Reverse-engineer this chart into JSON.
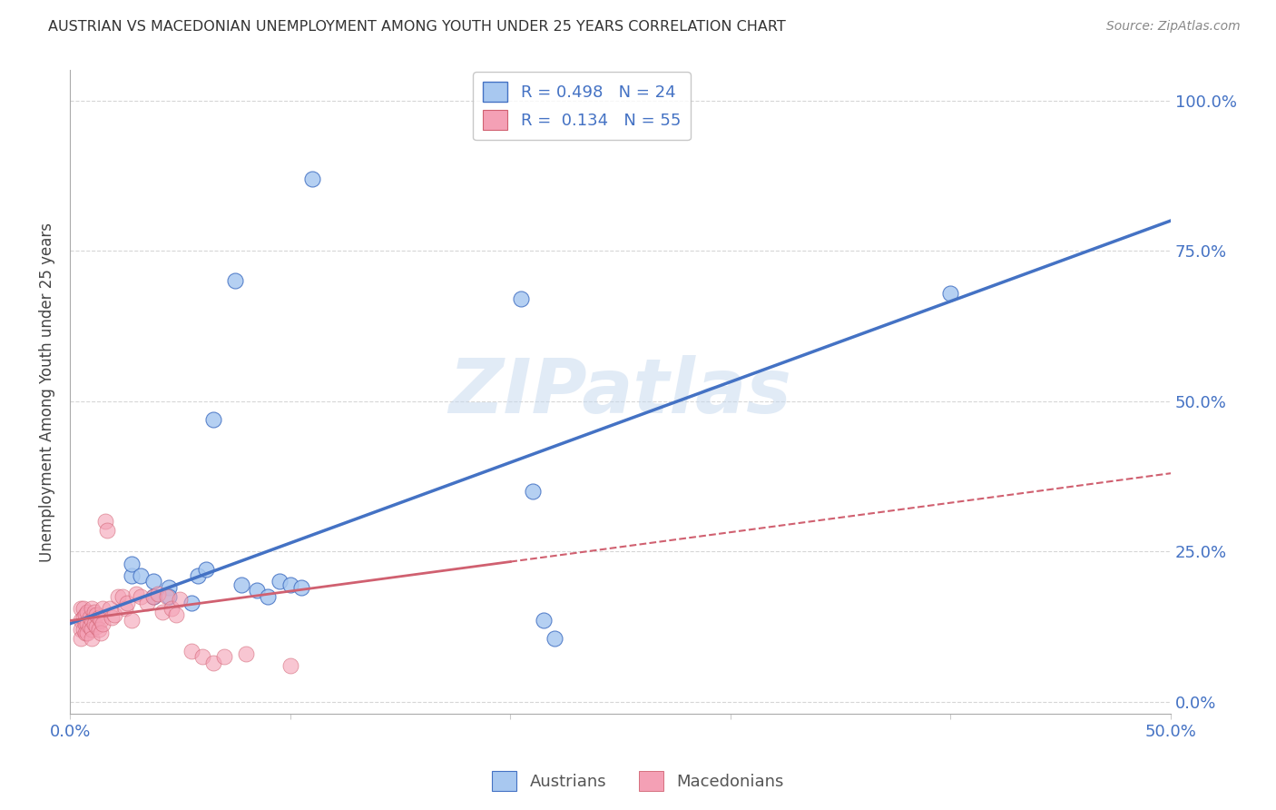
{
  "title": "AUSTRIAN VS MACEDONIAN UNEMPLOYMENT AMONG YOUTH UNDER 25 YEARS CORRELATION CHART",
  "source": "Source: ZipAtlas.com",
  "ylabel": "Unemployment Among Youth under 25 years",
  "xlabel_austrians": "Austrians",
  "xlabel_macedonians": "Macedonians",
  "xlim": [
    0.0,
    0.5
  ],
  "ylim": [
    -0.02,
    1.05
  ],
  "ytick_labels_right": [
    "0.0%",
    "25.0%",
    "50.0%",
    "75.0%",
    "100.0%"
  ],
  "ytick_positions_right": [
    0.0,
    0.25,
    0.5,
    0.75,
    1.0
  ],
  "austrian_R": 0.498,
  "austrian_N": 24,
  "macedonian_R": 0.134,
  "macedonian_N": 55,
  "color_austrian": "#A8C8F0",
  "color_macedonian": "#F4A0B5",
  "color_line_austrian": "#4472C4",
  "color_line_macedonian": "#D06070",
  "watermark": "ZIPatlas",
  "austrian_line_x": [
    0.0,
    0.5
  ],
  "austrian_line_y": [
    0.13,
    0.8
  ],
  "macedonian_line_x": [
    0.0,
    0.5
  ],
  "macedonian_line_y": [
    0.135,
    0.38
  ],
  "austrian_points_x": [
    0.028,
    0.028,
    0.032,
    0.038,
    0.038,
    0.045,
    0.045,
    0.055,
    0.058,
    0.062,
    0.065,
    0.075,
    0.078,
    0.085,
    0.09,
    0.095,
    0.1,
    0.105,
    0.11,
    0.205,
    0.21,
    0.215,
    0.22,
    0.4
  ],
  "austrian_points_y": [
    0.21,
    0.23,
    0.21,
    0.2,
    0.175,
    0.19,
    0.175,
    0.165,
    0.21,
    0.22,
    0.47,
    0.7,
    0.195,
    0.185,
    0.175,
    0.2,
    0.195,
    0.19,
    0.87,
    0.67,
    0.35,
    0.135,
    0.105,
    0.68
  ],
  "macedonian_points_x": [
    0.005,
    0.005,
    0.005,
    0.005,
    0.006,
    0.006,
    0.006,
    0.007,
    0.007,
    0.007,
    0.008,
    0.008,
    0.008,
    0.009,
    0.009,
    0.01,
    0.01,
    0.01,
    0.01,
    0.011,
    0.011,
    0.012,
    0.012,
    0.013,
    0.013,
    0.014,
    0.014,
    0.015,
    0.015,
    0.016,
    0.017,
    0.018,
    0.019,
    0.02,
    0.022,
    0.024,
    0.025,
    0.026,
    0.028,
    0.03,
    0.032,
    0.035,
    0.038,
    0.04,
    0.042,
    0.044,
    0.046,
    0.048,
    0.05,
    0.055,
    0.06,
    0.065,
    0.07,
    0.08,
    0.1
  ],
  "macedonian_points_y": [
    0.155,
    0.135,
    0.12,
    0.105,
    0.155,
    0.14,
    0.12,
    0.145,
    0.13,
    0.115,
    0.15,
    0.13,
    0.115,
    0.14,
    0.125,
    0.155,
    0.135,
    0.12,
    0.105,
    0.15,
    0.13,
    0.145,
    0.125,
    0.14,
    0.12,
    0.135,
    0.115,
    0.155,
    0.13,
    0.3,
    0.285,
    0.155,
    0.14,
    0.145,
    0.175,
    0.175,
    0.155,
    0.165,
    0.135,
    0.18,
    0.175,
    0.165,
    0.175,
    0.18,
    0.15,
    0.175,
    0.155,
    0.145,
    0.17,
    0.085,
    0.075,
    0.065,
    0.075,
    0.08,
    0.06
  ],
  "grid_color": "#CCCCCC",
  "background_color": "#FFFFFF"
}
